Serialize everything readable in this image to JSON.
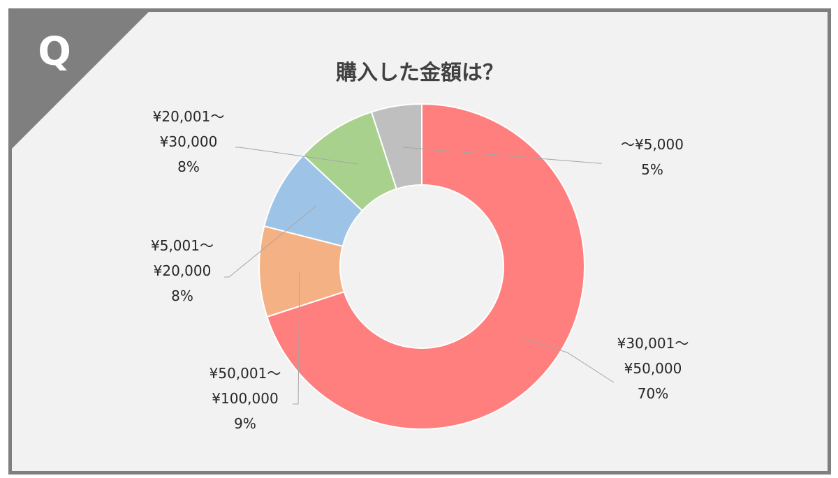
{
  "header": {
    "q_mark": "Q"
  },
  "chart_data": {
    "type": "pie",
    "variant": "donut",
    "title": "購入した金額は？",
    "slices": [
      {
        "category_lines": [
          "¥30,001～",
          "¥50,000"
        ],
        "percent_label": "70%",
        "value": 70,
        "color": "#ff7f7f"
      },
      {
        "category_lines": [
          "¥50,001～",
          "¥100,000"
        ],
        "percent_label": "9%",
        "value": 9,
        "color": "#f4b183"
      },
      {
        "category_lines": [
          "¥5,001～",
          "¥20,000"
        ],
        "percent_label": "8%",
        "value": 8,
        "color": "#9dc3e6"
      },
      {
        "category_lines": [
          "¥20,001～",
          "¥30,000"
        ],
        "percent_label": "8%",
        "value": 8,
        "color": "#a9d18e"
      },
      {
        "category_lines": [
          "～¥5,000"
        ],
        "percent_label": "5%",
        "value": 5,
        "color": "#bfbfbf"
      }
    ]
  }
}
